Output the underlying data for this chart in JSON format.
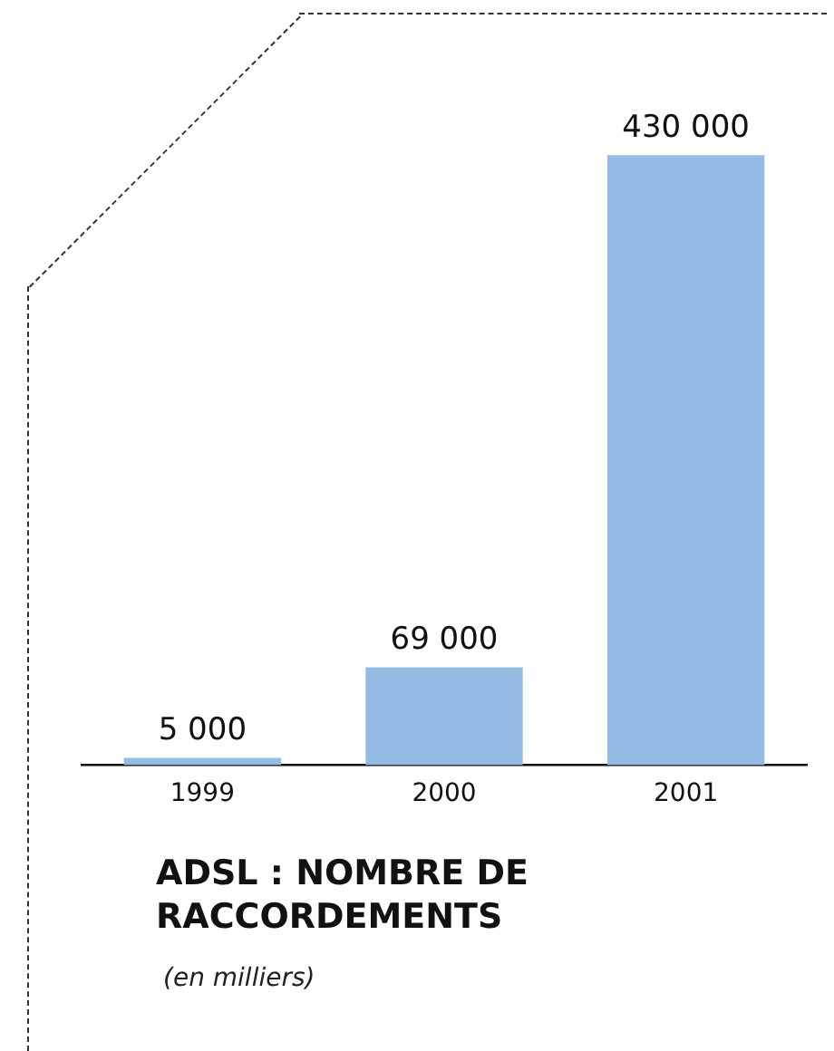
{
  "chart_data": {
    "type": "bar",
    "title": "ADSL : NOMBRE DE RACCORDEMENTS",
    "subtitle": "(en milliers)",
    "categories": [
      "1999",
      "2000",
      "2001"
    ],
    "values": [
      5000,
      69000,
      430000
    ],
    "value_labels": [
      "5 000",
      "69 000",
      "430 000"
    ],
    "color": "#94bbe3",
    "grid": false,
    "legend": false
  }
}
